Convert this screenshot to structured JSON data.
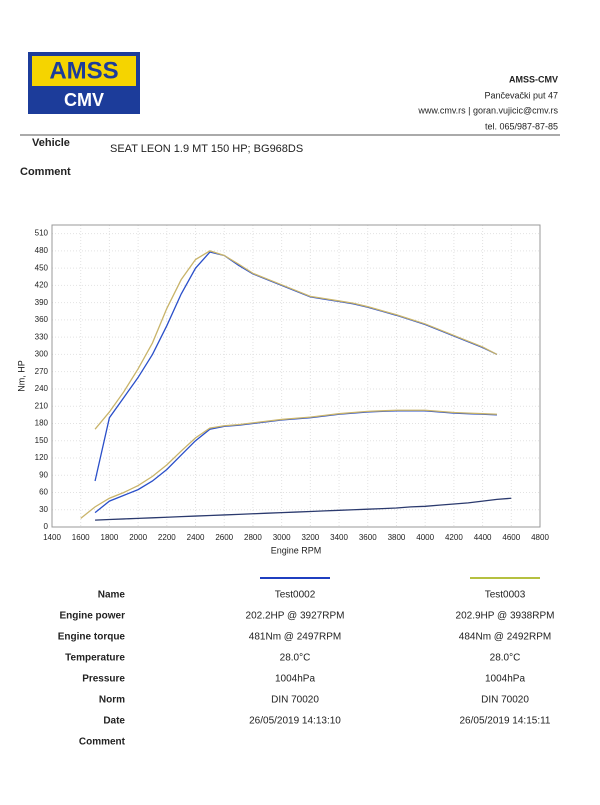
{
  "header": {
    "logo_top": "AMSS",
    "logo_bottom": "CMV",
    "company": "AMSS-CMV",
    "address": "Pančevački put 47",
    "web": "www.cmv.rs | goran.vujicic@cmv.rs",
    "phone": "tel. 065/987-87-85"
  },
  "vehicle": {
    "label": "Vehicle",
    "value": "SEAT LEON 1.9 MT 150 HP; BG968DS"
  },
  "comment": {
    "label": "Comment"
  },
  "chart_data": {
    "type": "line",
    "y_label": "Nm, HP",
    "x_label": "Engine RPM",
    "x": [
      1600,
      1700,
      1800,
      1900,
      2000,
      2100,
      2200,
      2300,
      2400,
      2500,
      2600,
      2700,
      2800,
      2900,
      3000,
      3100,
      3200,
      3300,
      3400,
      3500,
      3600,
      3700,
      3800,
      3900,
      4000,
      4100,
      4200,
      4300,
      4400,
      4500,
      4600
    ],
    "series": [
      {
        "color": "#2a4fc9",
        "values": [
          null,
          80,
          190,
          225,
          260,
          300,
          350,
          405,
          450,
          478,
          472,
          455,
          440,
          430,
          420,
          410,
          400,
          396,
          392,
          388,
          382,
          375,
          368,
          360,
          352,
          342,
          332,
          322,
          312,
          300,
          null
        ]
      },
      {
        "color": "#c9b46a",
        "values": [
          null,
          170,
          200,
          235,
          275,
          320,
          380,
          430,
          465,
          480,
          472,
          457,
          441,
          431,
          421,
          411,
          401,
          397,
          393,
          389,
          383,
          376,
          369,
          361,
          353,
          343,
          333,
          323,
          313,
          300,
          null
        ]
      },
      {
        "color": "#2a4fc9",
        "values": [
          null,
          25,
          45,
          55,
          65,
          80,
          100,
          125,
          150,
          170,
          175,
          177,
          180,
          183,
          186,
          188,
          190,
          193,
          196,
          198,
          200,
          201,
          202,
          202,
          202,
          200,
          198,
          197,
          196,
          195,
          null
        ]
      },
      {
        "color": "#c9b46a",
        "values": [
          15,
          35,
          50,
          60,
          72,
          88,
          108,
          132,
          155,
          172,
          176,
          178,
          181,
          184,
          187,
          189,
          191,
          194,
          197,
          199,
          201,
          202,
          203,
          203,
          203,
          201,
          199,
          198,
          197,
          196,
          null
        ]
      },
      {
        "color": "#2b3a6e",
        "values": [
          null,
          12,
          13,
          14,
          15,
          16,
          17,
          18,
          19,
          20,
          21,
          22,
          23,
          24,
          25,
          26,
          27,
          28,
          29,
          30,
          31,
          32,
          33,
          35,
          36,
          38,
          40,
          42,
          45,
          48,
          50
        ]
      }
    ],
    "xlim": [
      1400,
      4800
    ],
    "xticks": [
      1400,
      1600,
      1800,
      2000,
      2200,
      2400,
      2600,
      2800,
      3000,
      3200,
      3400,
      3600,
      3800,
      4000,
      4200,
      4400,
      4600,
      4800
    ],
    "ylim": [
      0,
      525
    ],
    "yticks": [
      0,
      30,
      60,
      90,
      120,
      150,
      180,
      210,
      240,
      270,
      300,
      330,
      360,
      390,
      420,
      450,
      480,
      510
    ],
    "grid": true
  },
  "table": {
    "line_colors": [
      "#1f3fc0",
      "#b5c040"
    ],
    "rows": [
      [
        "Name",
        "Test0002",
        "Test0003"
      ],
      [
        "Engine power",
        "202.2HP @  3927RPM",
        "202.9HP @  3938RPM"
      ],
      [
        "Engine torque",
        "481Nm @ 2497RPM",
        "484Nm @ 2492RPM"
      ],
      [
        "Temperature",
        "28.0°C",
        "28.0°C"
      ],
      [
        "Pressure",
        "1004hPa",
        "1004hPa"
      ],
      [
        "Norm",
        "DIN 70020",
        "DIN 70020"
      ],
      [
        "Date",
        "26/05/2019 14:13:10",
        "26/05/2019 14:15:11"
      ],
      [
        "Comment",
        "",
        ""
      ]
    ]
  }
}
